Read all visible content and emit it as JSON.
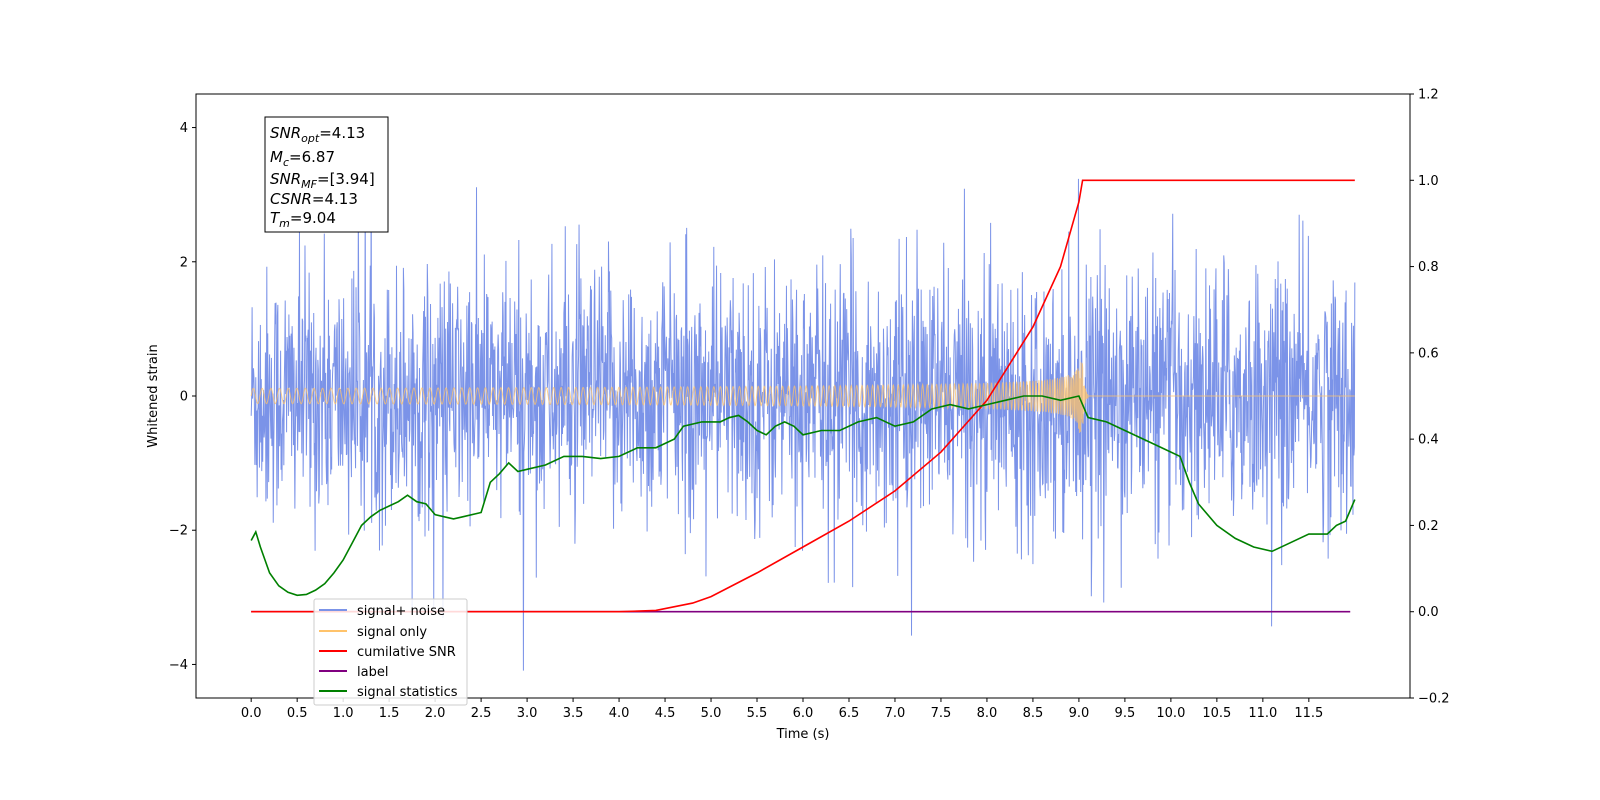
{
  "chart_data": {
    "type": "line",
    "xlabel": "Time (s)",
    "ylabel": "Whitened strain",
    "xlim": [
      -0.6,
      12.6
    ],
    "ylim": [
      -4.5,
      4.5
    ],
    "ylim_right": [
      -0.2,
      1.2
    ],
    "x_ticks": [
      "0.0",
      "0.5",
      "1.0",
      "1.5",
      "2.0",
      "2.5",
      "3.0",
      "3.5",
      "4.0",
      "4.5",
      "5.0",
      "5.5",
      "6.0",
      "6.5",
      "7.0",
      "7.5",
      "8.0",
      "8.5",
      "9.0",
      "9.5",
      "10.0",
      "10.5",
      "11.0",
      "11.5"
    ],
    "y_ticks_left": [
      "−4",
      "−2",
      "0",
      "2",
      "4"
    ],
    "y_ticks_right": [
      "−0.2",
      "0.0",
      "0.2",
      "0.4",
      "0.6",
      "0.8",
      "1.0",
      "1.2"
    ],
    "annotation": {
      "snr_opt": {
        "sym": "SNR",
        "sub": "opt",
        "val": "=4.13"
      },
      "mc": {
        "sym": "M",
        "sub": "c",
        "val": "=6.87"
      },
      "snr_mf": {
        "sym": "SNR",
        "sub": "MF",
        "val": "=[3.94]"
      },
      "csnr": {
        "sym": "CSNR",
        "val": "=4.13"
      },
      "tm": {
        "sym": "T",
        "sub": "m",
        "val": "=9.04"
      }
    },
    "legend_position": "lower-left",
    "series": [
      {
        "name": "signal+ noise",
        "color": "#7b93e8",
        "axis": "left",
        "style": "noise",
        "x_range": [
          0.0,
          12.0
        ],
        "approx_std": 1.0,
        "approx_max": 4.1,
        "approx_min": -4.1
      },
      {
        "name": "signal only",
        "color": "#ffc36b",
        "axis": "left",
        "style": "chirp",
        "x_range": [
          0.0,
          9.04
        ],
        "peak_amplitude": 0.55,
        "ringdown_end": 9.1
      },
      {
        "name": "cumilative SNR",
        "color": "#ff0000",
        "axis": "right",
        "points": [
          [
            0.0,
            0.0
          ],
          [
            4.0,
            0.0
          ],
          [
            4.4,
            0.003
          ],
          [
            4.8,
            0.02
          ],
          [
            5.0,
            0.035
          ],
          [
            5.5,
            0.09
          ],
          [
            6.0,
            0.15
          ],
          [
            6.5,
            0.21
          ],
          [
            7.0,
            0.28
          ],
          [
            7.5,
            0.37
          ],
          [
            8.0,
            0.49
          ],
          [
            8.5,
            0.66
          ],
          [
            8.8,
            0.8
          ],
          [
            9.0,
            0.95
          ],
          [
            9.04,
            1.0
          ],
          [
            12.0,
            1.0
          ]
        ]
      },
      {
        "name": "label",
        "color": "#800080",
        "axis": "right",
        "points": [
          [
            0.0,
            0.0
          ],
          [
            11.95,
            0.0
          ]
        ]
      },
      {
        "name": "signal statistics",
        "color": "#008000",
        "axis": "right",
        "points": [
          [
            0.0,
            0.165
          ],
          [
            0.05,
            0.185
          ],
          [
            0.1,
            0.15
          ],
          [
            0.2,
            0.09
          ],
          [
            0.3,
            0.06
          ],
          [
            0.4,
            0.045
          ],
          [
            0.5,
            0.038
          ],
          [
            0.6,
            0.04
          ],
          [
            0.7,
            0.05
          ],
          [
            0.8,
            0.065
          ],
          [
            0.9,
            0.09
          ],
          [
            1.0,
            0.12
          ],
          [
            1.1,
            0.16
          ],
          [
            1.2,
            0.2
          ],
          [
            1.3,
            0.22
          ],
          [
            1.4,
            0.235
          ],
          [
            1.5,
            0.245
          ],
          [
            1.6,
            0.255
          ],
          [
            1.7,
            0.27
          ],
          [
            1.8,
            0.255
          ],
          [
            1.9,
            0.25
          ],
          [
            2.0,
            0.225
          ],
          [
            2.1,
            0.22
          ],
          [
            2.2,
            0.215
          ],
          [
            2.3,
            0.22
          ],
          [
            2.5,
            0.23
          ],
          [
            2.6,
            0.3
          ],
          [
            2.7,
            0.32
          ],
          [
            2.8,
            0.345
          ],
          [
            2.9,
            0.325
          ],
          [
            3.0,
            0.33
          ],
          [
            3.2,
            0.34
          ],
          [
            3.4,
            0.36
          ],
          [
            3.6,
            0.36
          ],
          [
            3.8,
            0.355
          ],
          [
            4.0,
            0.36
          ],
          [
            4.2,
            0.38
          ],
          [
            4.4,
            0.38
          ],
          [
            4.6,
            0.4
          ],
          [
            4.7,
            0.43
          ],
          [
            4.9,
            0.44
          ],
          [
            5.0,
            0.44
          ],
          [
            5.1,
            0.44
          ],
          [
            5.2,
            0.45
          ],
          [
            5.3,
            0.455
          ],
          [
            5.4,
            0.44
          ],
          [
            5.5,
            0.42
          ],
          [
            5.6,
            0.41
          ],
          [
            5.7,
            0.43
          ],
          [
            5.8,
            0.44
          ],
          [
            5.9,
            0.43
          ],
          [
            6.0,
            0.41
          ],
          [
            6.2,
            0.42
          ],
          [
            6.4,
            0.42
          ],
          [
            6.6,
            0.44
          ],
          [
            6.8,
            0.45
          ],
          [
            7.0,
            0.43
          ],
          [
            7.2,
            0.44
          ],
          [
            7.4,
            0.47
          ],
          [
            7.6,
            0.48
          ],
          [
            7.8,
            0.47
          ],
          [
            8.0,
            0.48
          ],
          [
            8.2,
            0.49
          ],
          [
            8.4,
            0.5
          ],
          [
            8.6,
            0.5
          ],
          [
            8.8,
            0.49
          ],
          [
            9.0,
            0.5
          ],
          [
            9.1,
            0.45
          ],
          [
            9.3,
            0.44
          ],
          [
            9.5,
            0.42
          ],
          [
            9.7,
            0.4
          ],
          [
            9.9,
            0.38
          ],
          [
            10.1,
            0.36
          ],
          [
            10.2,
            0.3
          ],
          [
            10.3,
            0.25
          ],
          [
            10.5,
            0.2
          ],
          [
            10.7,
            0.17
          ],
          [
            10.9,
            0.15
          ],
          [
            11.1,
            0.14
          ],
          [
            11.3,
            0.16
          ],
          [
            11.5,
            0.18
          ],
          [
            11.7,
            0.18
          ],
          [
            11.8,
            0.2
          ],
          [
            11.9,
            0.21
          ],
          [
            12.0,
            0.26
          ]
        ]
      }
    ]
  }
}
